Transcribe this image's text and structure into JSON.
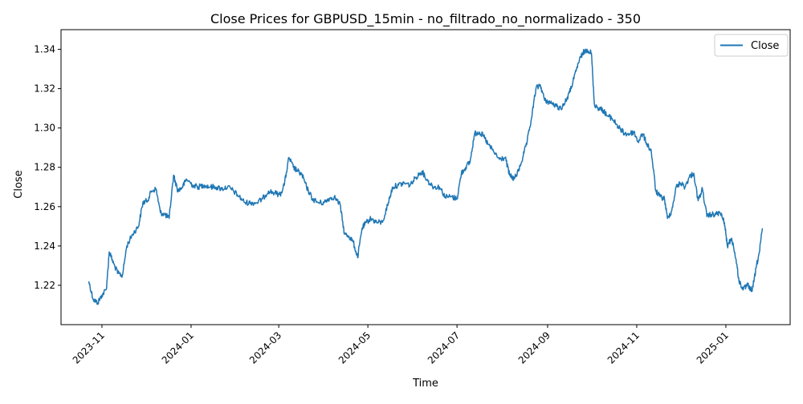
{
  "chart_data": {
    "type": "line",
    "title": "Close Prices for GBPUSD_15min - no_filtrado_no_normalizado - 350",
    "xlabel": "Time",
    "ylabel": "Close",
    "x_range": [
      "2023-10-04",
      "2025-02-14"
    ],
    "ylim": [
      1.2,
      1.35
    ],
    "x_ticks": [
      "2023-11",
      "2024-01",
      "2024-03",
      "2024-05",
      "2024-07",
      "2024-09",
      "2024-11",
      "2025-01"
    ],
    "y_ticks": [
      "1.22",
      "1.24",
      "1.26",
      "1.28",
      "1.30",
      "1.32",
      "1.34"
    ],
    "grid": false,
    "legend_position": "top-right",
    "series": [
      {
        "name": "Close",
        "color": "#1f77b4",
        "points": [
          [
            "2023-10-23",
            1.222
          ],
          [
            "2023-10-26",
            1.213
          ],
          [
            "2023-10-29",
            1.211
          ],
          [
            "2023-11-01",
            1.215
          ],
          [
            "2023-11-04",
            1.218
          ],
          [
            "2023-11-06",
            1.237
          ],
          [
            "2023-11-09",
            1.231
          ],
          [
            "2023-11-12",
            1.226
          ],
          [
            "2023-11-15",
            1.225
          ],
          [
            "2023-11-18",
            1.24
          ],
          [
            "2023-11-22",
            1.246
          ],
          [
            "2023-11-26",
            1.25
          ],
          [
            "2023-11-29",
            1.262
          ],
          [
            "2023-12-02",
            1.263
          ],
          [
            "2023-12-05",
            1.268
          ],
          [
            "2023-12-08",
            1.269
          ],
          [
            "2023-12-11",
            1.257
          ],
          [
            "2023-12-14",
            1.256
          ],
          [
            "2023-12-17",
            1.254
          ],
          [
            "2023-12-20",
            1.276
          ],
          [
            "2023-12-23",
            1.268
          ],
          [
            "2023-12-26",
            1.27
          ],
          [
            "2023-12-29",
            1.274
          ],
          [
            "2024-01-02",
            1.271
          ],
          [
            "2024-01-06",
            1.27
          ],
          [
            "2024-01-10",
            1.271
          ],
          [
            "2024-01-14",
            1.27
          ],
          [
            "2024-01-18",
            1.27
          ],
          [
            "2024-01-22",
            1.269
          ],
          [
            "2024-01-26",
            1.27
          ],
          [
            "2024-01-30",
            1.268
          ],
          [
            "2024-02-03",
            1.265
          ],
          [
            "2024-02-07",
            1.262
          ],
          [
            "2024-02-11",
            1.262
          ],
          [
            "2024-02-15",
            1.262
          ],
          [
            "2024-02-19",
            1.264
          ],
          [
            "2024-02-23",
            1.268
          ],
          [
            "2024-02-27",
            1.267
          ],
          [
            "2024-03-02",
            1.266
          ],
          [
            "2024-03-05",
            1.272
          ],
          [
            "2024-03-08",
            1.285
          ],
          [
            "2024-03-11",
            1.28
          ],
          [
            "2024-03-14",
            1.278
          ],
          [
            "2024-03-17",
            1.276
          ],
          [
            "2024-03-20",
            1.27
          ],
          [
            "2024-03-24",
            1.264
          ],
          [
            "2024-03-28",
            1.262
          ],
          [
            "2024-04-01",
            1.262
          ],
          [
            "2024-04-04",
            1.264
          ],
          [
            "2024-04-08",
            1.265
          ],
          [
            "2024-04-12",
            1.261
          ],
          [
            "2024-04-15",
            1.246
          ],
          [
            "2024-04-18",
            1.245
          ],
          [
            "2024-04-21",
            1.242
          ],
          [
            "2024-04-24",
            1.234
          ],
          [
            "2024-04-27",
            1.249
          ],
          [
            "2024-04-30",
            1.252
          ],
          [
            "2024-05-03",
            1.254
          ],
          [
            "2024-05-07",
            1.252
          ],
          [
            "2024-05-11",
            1.252
          ],
          [
            "2024-05-15",
            1.262
          ],
          [
            "2024-05-18",
            1.27
          ],
          [
            "2024-05-22",
            1.271
          ],
          [
            "2024-05-26",
            1.272
          ],
          [
            "2024-05-30",
            1.271
          ],
          [
            "2024-06-03",
            1.275
          ],
          [
            "2024-06-07",
            1.278
          ],
          [
            "2024-06-11",
            1.273
          ],
          [
            "2024-06-15",
            1.27
          ],
          [
            "2024-06-19",
            1.27
          ],
          [
            "2024-06-23",
            1.265
          ],
          [
            "2024-06-27",
            1.265
          ],
          [
            "2024-07-01",
            1.264
          ],
          [
            "2024-07-04",
            1.277
          ],
          [
            "2024-07-07",
            1.28
          ],
          [
            "2024-07-10",
            1.283
          ],
          [
            "2024-07-13",
            1.297
          ],
          [
            "2024-07-16",
            1.298
          ],
          [
            "2024-07-19",
            1.296
          ],
          [
            "2024-07-22",
            1.292
          ],
          [
            "2024-07-26",
            1.288
          ],
          [
            "2024-07-30",
            1.284
          ],
          [
            "2024-08-03",
            1.285
          ],
          [
            "2024-08-06",
            1.276
          ],
          [
            "2024-08-09",
            1.274
          ],
          [
            "2024-08-12",
            1.278
          ],
          [
            "2024-08-15",
            1.285
          ],
          [
            "2024-08-18",
            1.293
          ],
          [
            "2024-08-21",
            1.305
          ],
          [
            "2024-08-24",
            1.32
          ],
          [
            "2024-08-27",
            1.322
          ],
          [
            "2024-08-30",
            1.314
          ],
          [
            "2024-09-03",
            1.313
          ],
          [
            "2024-09-07",
            1.311
          ],
          [
            "2024-09-10",
            1.31
          ],
          [
            "2024-09-13",
            1.313
          ],
          [
            "2024-09-16",
            1.318
          ],
          [
            "2024-09-19",
            1.325
          ],
          [
            "2024-09-22",
            1.333
          ],
          [
            "2024-09-25",
            1.338
          ],
          [
            "2024-09-28",
            1.34
          ],
          [
            "2024-10-01",
            1.338
          ],
          [
            "2024-10-03",
            1.312
          ],
          [
            "2024-10-06",
            1.31
          ],
          [
            "2024-10-09",
            1.309
          ],
          [
            "2024-10-12",
            1.306
          ],
          [
            "2024-10-15",
            1.305
          ],
          [
            "2024-10-18",
            1.302
          ],
          [
            "2024-10-21",
            1.299
          ],
          [
            "2024-10-24",
            1.297
          ],
          [
            "2024-10-27",
            1.297
          ],
          [
            "2024-10-30",
            1.298
          ],
          [
            "2024-11-02",
            1.293
          ],
          [
            "2024-11-05",
            1.297
          ],
          [
            "2024-11-08",
            1.292
          ],
          [
            "2024-11-11",
            1.288
          ],
          [
            "2024-11-14",
            1.268
          ],
          [
            "2024-11-17",
            1.265
          ],
          [
            "2024-11-20",
            1.264
          ],
          [
            "2024-11-22",
            1.254
          ],
          [
            "2024-11-25",
            1.258
          ],
          [
            "2024-11-28",
            1.27
          ],
          [
            "2024-12-01",
            1.272
          ],
          [
            "2024-12-04",
            1.27
          ],
          [
            "2024-12-07",
            1.275
          ],
          [
            "2024-12-10",
            1.277
          ],
          [
            "2024-12-13",
            1.263
          ],
          [
            "2024-12-16",
            1.269
          ],
          [
            "2024-12-19",
            1.255
          ],
          [
            "2024-12-22",
            1.256
          ],
          [
            "2024-12-25",
            1.256
          ],
          [
            "2024-12-28",
            1.257
          ],
          [
            "2024-12-31",
            1.252
          ],
          [
            "2025-01-02",
            1.24
          ],
          [
            "2025-01-05",
            1.244
          ],
          [
            "2025-01-08",
            1.233
          ],
          [
            "2025-01-10",
            1.222
          ],
          [
            "2025-01-13",
            1.218
          ],
          [
            "2025-01-16",
            1.22
          ],
          [
            "2025-01-19",
            1.217
          ],
          [
            "2025-01-22",
            1.23
          ],
          [
            "2025-01-24",
            1.237
          ],
          [
            "2025-01-26",
            1.249
          ]
        ]
      }
    ]
  }
}
